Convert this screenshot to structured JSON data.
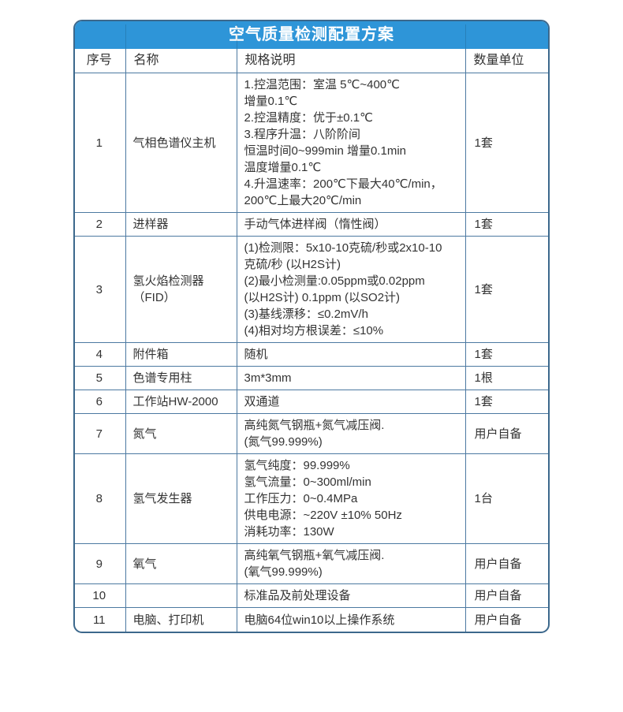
{
  "title": "空气质量检测配置方案",
  "colors": {
    "header_blue": "#2e95d8",
    "outer_border": "#3c688c",
    "inner_border": "#4c79a1",
    "text": "#333333",
    "title_text": "#ffffff"
  },
  "table": {
    "headers": [
      "序号",
      "名称",
      "规格说明",
      "数量单位"
    ],
    "rows": [
      {
        "no": "1",
        "name": "气相色谱仪主机",
        "spec": "1.控温范围：室温 5℃~400℃\n增量0.1℃\n2.控温精度：优于±0.1℃\n3.程序升温：八阶阶间\n恒温时间0~999min 增量0.1min\n温度增量0.1℃\n4.升温速率：200℃下最大40℃/min，\n200℃上最大20℃/min",
        "qty": "1套"
      },
      {
        "no": "2",
        "name": "进样器",
        "spec": "手动气体进样阀（惰性阀）",
        "qty": "1套"
      },
      {
        "no": "3",
        "name": "氢火焰检测器（FID）",
        "spec": "(1)检测限：5x10-10克硫/秒或2x10-10\n克硫/秒 (以H2S计)\n(2)最小检测量:0.05ppm或0.02ppm\n(以H2S计) 0.1ppm (以SO2计)\n(3)基线漂移：≤0.2mV/h\n(4)相对均方根误差：≤10%",
        "qty": "1套"
      },
      {
        "no": "4",
        "name": "附件箱",
        "spec": "随机",
        "qty": "1套"
      },
      {
        "no": "5",
        "name": "色谱专用柱",
        "spec": "3m*3mm",
        "qty": "1根"
      },
      {
        "no": "6",
        "name": "工作站HW-2000",
        "spec": "双通道",
        "qty": "1套"
      },
      {
        "no": "7",
        "name": "氮气",
        "spec": "高纯氮气钢瓶+氮气减压阀.\n(氮气99.999%)",
        "qty": "用户自备"
      },
      {
        "no": "8",
        "name": "氢气发生器",
        "spec": "氢气纯度：99.999%\n氢气流量：0~300ml/min\n工作压力：0~0.4MPa\n供电电源：~220V ±10% 50Hz\n消耗功率：130W",
        "qty": "1台"
      },
      {
        "no": "9",
        "name": "氧气",
        "spec": "高纯氧气钢瓶+氧气减压阀.\n(氧气99.999%)",
        "qty": "用户自备"
      },
      {
        "no": "10",
        "name": "",
        "spec": "标准品及前处理设备",
        "qty": "用户自备"
      },
      {
        "no": "11",
        "name": "电脑、打印机",
        "spec": "电脑64位win10以上操作系统",
        "qty": "用户自备"
      }
    ]
  }
}
